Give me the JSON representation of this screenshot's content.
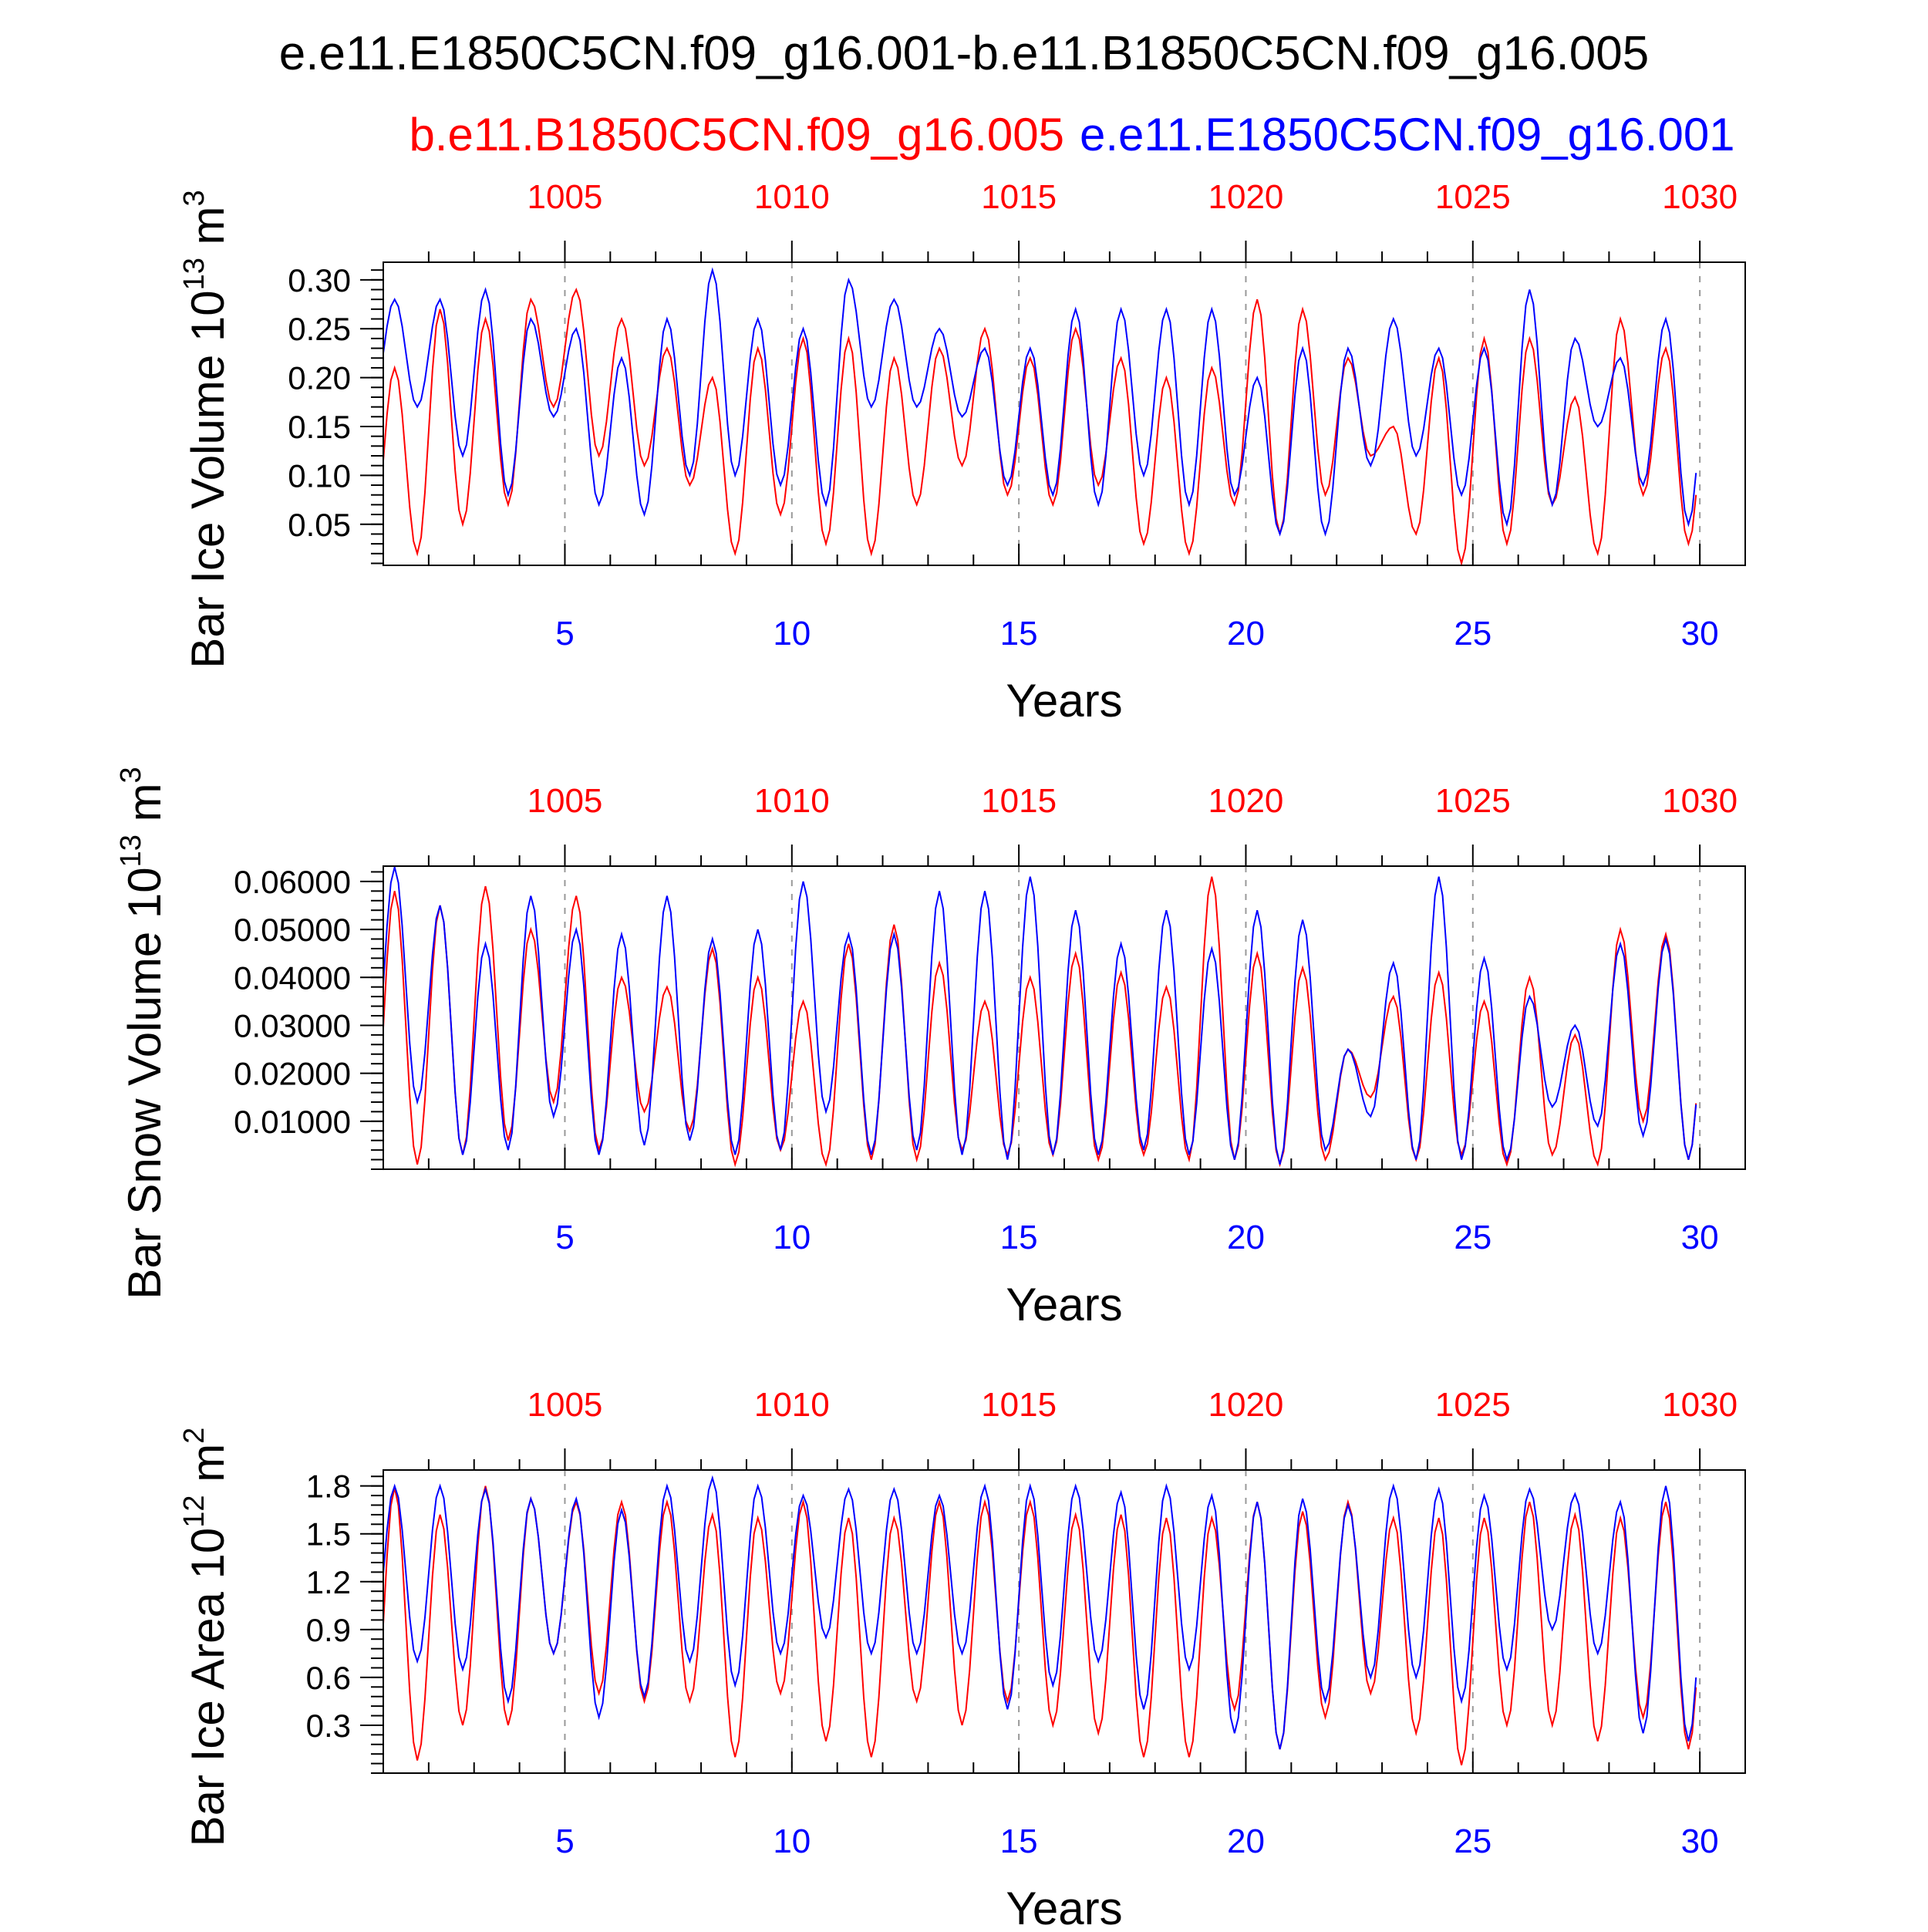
{
  "title": "e.e11.E1850C5CN.f09_g16.001-b.e11.B1850C5CN.f09_g16.005",
  "legend": {
    "red": "b.e11.B1850C5CN.f09_g16.005",
    "blue": "e.e11.E1850C5CN.f09_g16.001"
  },
  "colors": {
    "red": "#ff0000",
    "blue": "#0000ff",
    "axis": "#000000",
    "grid": "#999999"
  },
  "chart_data": [
    {
      "type": "line",
      "ylabel_prefix": "Bar Ice Volume 10",
      "ylabel_exp": "13",
      "ylabel_unit": " m",
      "ylabel_unit_exp": "3",
      "xlabel": "Years",
      "xlim": [
        1,
        31
      ],
      "ylim": [
        0.008,
        0.318
      ],
      "yticks": [
        0.05,
        0.1,
        0.15,
        0.2,
        0.25,
        0.3
      ],
      "ytick_labels": [
        "0.05",
        "0.10",
        "0.15",
        "0.20",
        "0.25",
        "0.30"
      ],
      "xticks_bottom": [
        5,
        10,
        15,
        20,
        25,
        30
      ],
      "xtick_labels_bottom": [
        "5",
        "10",
        "15",
        "20",
        "25",
        "30"
      ],
      "xtick_labels_top": [
        "1005",
        "1010",
        "1015",
        "1020",
        "1025",
        "1030"
      ],
      "series": [
        {
          "color": "red",
          "peaks": [
            0.21,
            0.27,
            0.26,
            0.28,
            0.29,
            0.26,
            0.23,
            0.2,
            0.23,
            0.24,
            0.24,
            0.22,
            0.23,
            0.25,
            0.22,
            0.25,
            0.22,
            0.2,
            0.21,
            0.28,
            0.27,
            0.22,
            0.15,
            0.22,
            0.24,
            0.24,
            0.18,
            0.26,
            0.23
          ],
          "troughs": [
            0.02,
            0.05,
            0.07,
            0.17,
            0.12,
            0.11,
            0.09,
            0.02,
            0.06,
            0.03,
            0.02,
            0.07,
            0.11,
            0.08,
            0.07,
            0.09,
            0.03,
            0.02,
            0.07,
            0.04,
            0.08,
            0.12,
            0.04,
            0.01,
            0.03,
            0.07,
            0.02,
            0.08,
            0.03
          ]
        },
        {
          "color": "blue",
          "peaks": [
            0.28,
            0.28,
            0.29,
            0.26,
            0.25,
            0.22,
            0.26,
            0.31,
            0.26,
            0.25,
            0.3,
            0.28,
            0.25,
            0.23,
            0.23,
            0.27,
            0.27,
            0.27,
            0.27,
            0.2,
            0.23,
            0.23,
            0.26,
            0.23,
            0.23,
            0.29,
            0.24,
            0.22,
            0.26
          ],
          "troughs": [
            0.17,
            0.12,
            0.08,
            0.16,
            0.07,
            0.06,
            0.1,
            0.1,
            0.09,
            0.07,
            0.17,
            0.17,
            0.16,
            0.09,
            0.08,
            0.07,
            0.1,
            0.07,
            0.08,
            0.04,
            0.04,
            0.11,
            0.12,
            0.08,
            0.05,
            0.07,
            0.15,
            0.09,
            0.05
          ]
        }
      ]
    },
    {
      "type": "line",
      "ylabel_prefix": "Bar Snow Volume 10",
      "ylabel_exp": "13",
      "ylabel_unit": " m",
      "ylabel_unit_exp": "3",
      "xlabel": "Years",
      "xlim": [
        1,
        31
      ],
      "ylim": [
        0.0,
        0.0632
      ],
      "yticks": [
        0.01,
        0.02,
        0.03,
        0.04,
        0.05,
        0.06
      ],
      "ytick_labels": [
        "0.01000",
        "0.02000",
        "0.03000",
        "0.04000",
        "0.05000",
        "0.06000"
      ],
      "xticks_bottom": [
        5,
        10,
        15,
        20,
        25,
        30
      ],
      "xtick_labels_bottom": [
        "5",
        "10",
        "15",
        "20",
        "25",
        "30"
      ],
      "xtick_labels_top": [
        "1005",
        "1010",
        "1015",
        "1020",
        "1025",
        "1030"
      ],
      "series": [
        {
          "color": "red",
          "peaks": [
            0.058,
            0.055,
            0.059,
            0.05,
            0.057,
            0.04,
            0.038,
            0.046,
            0.04,
            0.035,
            0.047,
            0.051,
            0.043,
            0.035,
            0.04,
            0.045,
            0.041,
            0.038,
            0.061,
            0.045,
            0.042,
            0.025,
            0.036,
            0.041,
            0.035,
            0.04,
            0.028,
            0.05,
            0.049
          ],
          "troughs": [
            0.001,
            0.003,
            0.006,
            0.014,
            0.004,
            0.012,
            0.008,
            0.001,
            0.004,
            0.001,
            0.002,
            0.002,
            0.004,
            0.003,
            0.003,
            0.002,
            0.003,
            0.002,
            0.002,
            0.001,
            0.002,
            0.015,
            0.002,
            0.003,
            0.001,
            0.003,
            0.001,
            0.01,
            0.002
          ]
        },
        {
          "color": "blue",
          "peaks": [
            0.063,
            0.055,
            0.047,
            0.057,
            0.05,
            0.049,
            0.057,
            0.048,
            0.05,
            0.06,
            0.049,
            0.049,
            0.058,
            0.058,
            0.061,
            0.054,
            0.047,
            0.054,
            0.046,
            0.054,
            0.052,
            0.025,
            0.043,
            0.061,
            0.044,
            0.036,
            0.03,
            0.047,
            0.048
          ],
          "troughs": [
            0.014,
            0.003,
            0.004,
            0.011,
            0.003,
            0.005,
            0.006,
            0.003,
            0.004,
            0.012,
            0.003,
            0.004,
            0.003,
            0.002,
            0.003,
            0.003,
            0.004,
            0.003,
            0.002,
            0.001,
            0.004,
            0.011,
            0.002,
            0.002,
            0.002,
            0.013,
            0.009,
            0.007,
            0.002
          ]
        }
      ]
    },
    {
      "type": "line",
      "ylabel_prefix": "Bar Ice Area 10",
      "ylabel_exp": "12",
      "ylabel_unit": " m",
      "ylabel_unit_exp": "2",
      "xlabel": "Years",
      "xlim": [
        1,
        31
      ],
      "ylim": [
        0.0,
        1.9
      ],
      "yticks": [
        0.3,
        0.6,
        0.9,
        1.2,
        1.5,
        1.8
      ],
      "ytick_labels": [
        "0.3",
        "0.6",
        "0.9",
        "1.2",
        "1.5",
        "1.8"
      ],
      "xticks_bottom": [
        5,
        10,
        15,
        20,
        25,
        30
      ],
      "xtick_labels_bottom": [
        "5",
        "10",
        "15",
        "20",
        "25",
        "30"
      ],
      "xtick_labels_top": [
        "1005",
        "1010",
        "1015",
        "1020",
        "1025",
        "1030"
      ],
      "series": [
        {
          "color": "red",
          "peaks": [
            1.79,
            1.62,
            1.8,
            1.72,
            1.7,
            1.7,
            1.7,
            1.62,
            1.6,
            1.7,
            1.6,
            1.6,
            1.7,
            1.7,
            1.7,
            1.62,
            1.62,
            1.6,
            1.6,
            1.7,
            1.64,
            1.7,
            1.6,
            1.6,
            1.6,
            1.7,
            1.62,
            1.6,
            1.7
          ],
          "troughs": [
            0.08,
            0.3,
            0.3,
            0.75,
            0.5,
            0.45,
            0.45,
            0.1,
            0.5,
            0.2,
            0.1,
            0.45,
            0.3,
            0.45,
            0.3,
            0.25,
            0.1,
            0.1,
            0.4,
            0.15,
            0.35,
            0.5,
            0.25,
            0.05,
            0.3,
            0.3,
            0.2,
            0.35,
            0.15
          ]
        },
        {
          "color": "blue",
          "peaks": [
            1.8,
            1.8,
            1.78,
            1.72,
            1.72,
            1.65,
            1.8,
            1.85,
            1.8,
            1.74,
            1.78,
            1.78,
            1.74,
            1.8,
            1.8,
            1.8,
            1.76,
            1.8,
            1.74,
            1.7,
            1.72,
            1.68,
            1.8,
            1.78,
            1.74,
            1.78,
            1.75,
            1.7,
            1.8
          ],
          "troughs": [
            0.7,
            0.65,
            0.45,
            0.75,
            0.35,
            0.48,
            0.7,
            0.55,
            0.75,
            0.85,
            0.75,
            0.75,
            0.75,
            0.4,
            0.55,
            0.7,
            0.4,
            0.65,
            0.25,
            0.15,
            0.45,
            0.6,
            0.6,
            0.45,
            0.65,
            0.9,
            0.75,
            0.25,
            0.2
          ]
        }
      ]
    }
  ]
}
